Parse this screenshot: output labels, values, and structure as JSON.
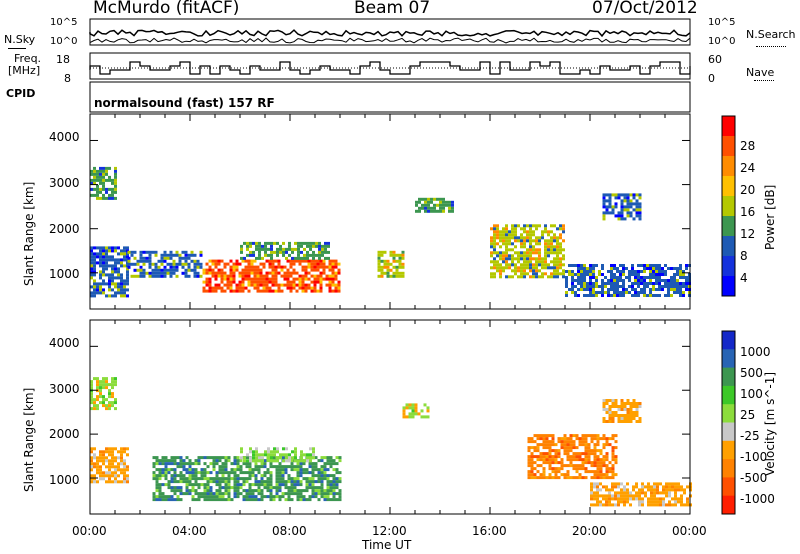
{
  "header": {
    "title": "McMurdo (fitACF)",
    "beam": "Beam 07",
    "date": "07/Oct/2012"
  },
  "noise_panel": {
    "left_label": "N.Sky",
    "right_label": "N.Search",
    "left_ticks": [
      "10^5",
      "10^0"
    ],
    "right_ticks": [
      "10^5",
      "10^0"
    ]
  },
  "freq_panel": {
    "left_label_line1": "Freq.",
    "left_label_line2": "[MHz]",
    "left_ticks": [
      "18",
      "8"
    ],
    "right_label": "Nave",
    "right_ticks": [
      "60",
      "0"
    ]
  },
  "cpid_panel": {
    "label": "CPID",
    "value": "normalsound (fast) 157 RF"
  },
  "x_axis": {
    "label": "Time UT",
    "ticks": [
      "00:00",
      "04:00",
      "08:00",
      "12:00",
      "16:00",
      "20:00",
      "00:00"
    ]
  },
  "colorbars": {
    "power_label": "Power [dB]",
    "power_ticks": [
      "28",
      "24",
      "20",
      "16",
      "12",
      "8",
      "4"
    ],
    "power_colors": [
      "#ff0000",
      "#ff5000",
      "#ff8c00",
      "#ffc000",
      "#b4c800",
      "#3c9650",
      "#1e5ab4",
      "#1432dc",
      "#0000ff"
    ],
    "velocity_label": "Velocity [m s^-1]",
    "velocity_ticks": [
      "1000",
      "500",
      "100",
      "25",
      "-25",
      "-100",
      "-500",
      "-1000"
    ],
    "velocity_colors": [
      "#1428c8",
      "#2864b4",
      "#3c9650",
      "#3cc828",
      "#8cdc3c",
      "#c8c8c8",
      "#ffa000",
      "#ff8200",
      "#ff5000",
      "#ff1e00"
    ]
  },
  "chart_data": [
    {
      "type": "heatmap",
      "title": "Power",
      "ylabel": "Slant Range [km]",
      "xlabel": "",
      "yticks": [
        "1000",
        "2000",
        "3000",
        "4000"
      ],
      "ylim": [
        180,
        4600
      ],
      "xlim": [
        0,
        24
      ],
      "zlabel": "Power [dB]",
      "zlim": [
        0,
        30
      ],
      "regions": [
        {
          "t0": 0.0,
          "t1": 1.5,
          "r0": 500,
          "r1": 1600,
          "level": 8
        },
        {
          "t0": 0.0,
          "t1": 1.0,
          "r0": 2700,
          "r1": 3400,
          "level": 10
        },
        {
          "t0": 1.5,
          "t1": 4.5,
          "r0": 900,
          "r1": 1500,
          "level": 8
        },
        {
          "t0": 4.5,
          "t1": 10.0,
          "r0": 600,
          "r1": 1300,
          "level": 24
        },
        {
          "t0": 6.0,
          "t1": 9.5,
          "r0": 1300,
          "r1": 1700,
          "level": 10
        },
        {
          "t0": 11.5,
          "t1": 12.5,
          "r0": 900,
          "r1": 1500,
          "level": 16
        },
        {
          "t0": 13.0,
          "t1": 14.5,
          "r0": 2400,
          "r1": 2700,
          "level": 10
        },
        {
          "t0": 16.0,
          "t1": 19.0,
          "r0": 900,
          "r1": 2100,
          "level": 14
        },
        {
          "t0": 19.0,
          "t1": 24.0,
          "r0": 500,
          "r1": 1200,
          "level": 8
        },
        {
          "t0": 20.5,
          "t1": 22.0,
          "r0": 2200,
          "r1": 2800,
          "level": 8
        }
      ]
    },
    {
      "type": "heatmap",
      "title": "Velocity",
      "ylabel": "Slant Range [km]",
      "xlabel": "Time UT",
      "yticks": [
        "1000",
        "2000",
        "3000",
        "4000"
      ],
      "ylim": [
        180,
        4600
      ],
      "xlim": [
        0,
        24
      ],
      "zlabel": "Velocity [m s^-1]",
      "zlim": [
        -1000,
        1000
      ],
      "regions": [
        {
          "t0": 0.0,
          "t1": 1.5,
          "r0": 900,
          "r1": 1700,
          "level": -300
        },
        {
          "t0": 0.0,
          "t1": 1.0,
          "r0": 2600,
          "r1": 3300,
          "level": 0
        },
        {
          "t0": 2.5,
          "t1": 10.0,
          "r0": 500,
          "r1": 1500,
          "level": 400
        },
        {
          "t0": 6.0,
          "t1": 9.0,
          "r0": 1400,
          "r1": 1700,
          "level": 100
        },
        {
          "t0": 12.5,
          "t1": 13.5,
          "r0": 2400,
          "r1": 2700,
          "level": 0
        },
        {
          "t0": 17.5,
          "t1": 21.0,
          "r0": 1000,
          "r1": 2000,
          "level": -500
        },
        {
          "t0": 20.0,
          "t1": 24.0,
          "r0": 400,
          "r1": 900,
          "level": -300
        },
        {
          "t0": 20.5,
          "t1": 22.0,
          "r0": 2300,
          "r1": 2800,
          "level": -300
        }
      ]
    }
  ]
}
